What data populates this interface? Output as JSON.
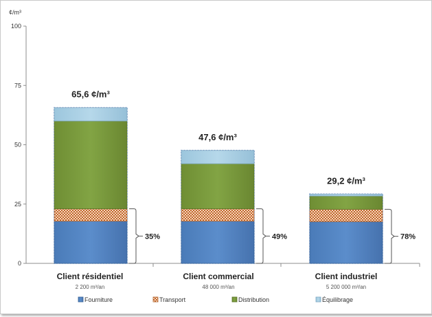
{
  "chart_data": {
    "type": "bar",
    "stacked": true,
    "unit_label": "¢/m³",
    "ylim": [
      0,
      100
    ],
    "yticks": [
      "0",
      "25",
      "50",
      "75",
      "100"
    ],
    "categories": [
      {
        "name": "Client résidentiel",
        "sub": "2 200 m³/an",
        "total_label": "65,6 ¢/m³",
        "share_label": "35%"
      },
      {
        "name": "Client commercial",
        "sub": "48 000 m³/an",
        "total_label": "47,6 ¢/m³",
        "share_label": "49%"
      },
      {
        "name": "Client industriel",
        "sub": "5 200 000 m³/an",
        "total_label": "29,2 ¢/m³",
        "share_label": "78%"
      }
    ],
    "series": [
      {
        "name": "Fourniture",
        "color": "#4F81BD",
        "values": [
          17.8,
          17.8,
          17.6
        ]
      },
      {
        "name": "Transport",
        "color": "#F2C6A5",
        "pattern": "checker",
        "values": [
          5.2,
          5.2,
          5.2
        ]
      },
      {
        "name": "Distribution",
        "color": "#77933C",
        "values": [
          37.0,
          19.0,
          5.6
        ]
      },
      {
        "name": "Équilibrage",
        "color": "#A8CFE3",
        "values": [
          5.6,
          5.6,
          0.8
        ]
      }
    ],
    "totals": [
      65.6,
      47.6,
      29.2
    ],
    "shares_percent": [
      35,
      49,
      78
    ]
  }
}
